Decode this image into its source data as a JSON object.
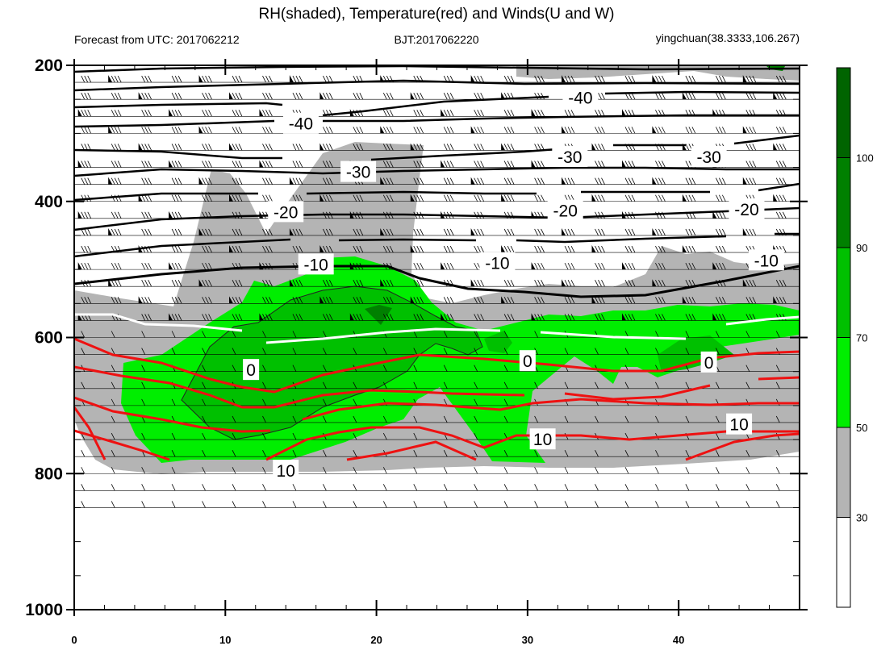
{
  "title": "RH(shaded), Temperature(red) and Winds(U and W)",
  "header": {
    "left": "Forecast from UTC: 2017062212",
    "center": "BJT:2017062220",
    "right": "yingchuan(38.3333,106.267)"
  },
  "chart_data": {
    "type": "contour",
    "title": "RH(shaded), Temperature(red) and Winds(U and W)",
    "xlim": [
      0,
      48
    ],
    "ylim": [
      1000,
      200
    ],
    "y_scale": "linear, pressure decreasing upward",
    "x_ticks": [
      0,
      10,
      20,
      30,
      40
    ],
    "y_ticks": [
      200,
      400,
      600,
      800,
      1000
    ],
    "colorbar": {
      "levels": [
        30,
        50,
        70,
        90,
        100
      ],
      "colors": [
        "#ffffff",
        "#b4b4b4",
        "#00ee00",
        "#00c000",
        "#008000",
        "#006400"
      ]
    },
    "temperature_labels": [
      {
        "text": "-40",
        "x": 33.5,
        "p": 247
      },
      {
        "text": "-40",
        "x": 15,
        "p": 285
      },
      {
        "text": "-30",
        "x": 18.8,
        "p": 356
      },
      {
        "text": "-30",
        "x": 32.8,
        "p": 334
      },
      {
        "text": "-30",
        "x": 42,
        "p": 334
      },
      {
        "text": "-20",
        "x": 14,
        "p": 415
      },
      {
        "text": "-20",
        "x": 32.5,
        "p": 413
      },
      {
        "text": "-20",
        "x": 44.5,
        "p": 411
      },
      {
        "text": "-10",
        "x": 16,
        "p": 492
      },
      {
        "text": "-10",
        "x": 28,
        "p": 490
      },
      {
        "text": "-10",
        "x": 45.8,
        "p": 486
      },
      {
        "text": "0",
        "x": 11.7,
        "p": 647
      },
      {
        "text": "0",
        "x": 30,
        "p": 634
      },
      {
        "text": "0",
        "x": 42,
        "p": 636
      },
      {
        "text": "10",
        "x": 14,
        "p": 795
      },
      {
        "text": "10",
        "x": 31,
        "p": 749
      },
      {
        "text": "10",
        "x": 44,
        "p": 727
      }
    ]
  },
  "colorbar_labels": [
    "30",
    "50",
    "70",
    "90",
    "100"
  ],
  "colors": {
    "rh_30_50": "#b4b4b4",
    "rh_50_70": "#00ee00",
    "rh_70_90": "#00c000",
    "rh_90_100": "#008000",
    "rh_100": "#006400",
    "temp_positive": "#ee1111",
    "temp_zero": "#ffffff",
    "temp_negative": "#000000"
  }
}
